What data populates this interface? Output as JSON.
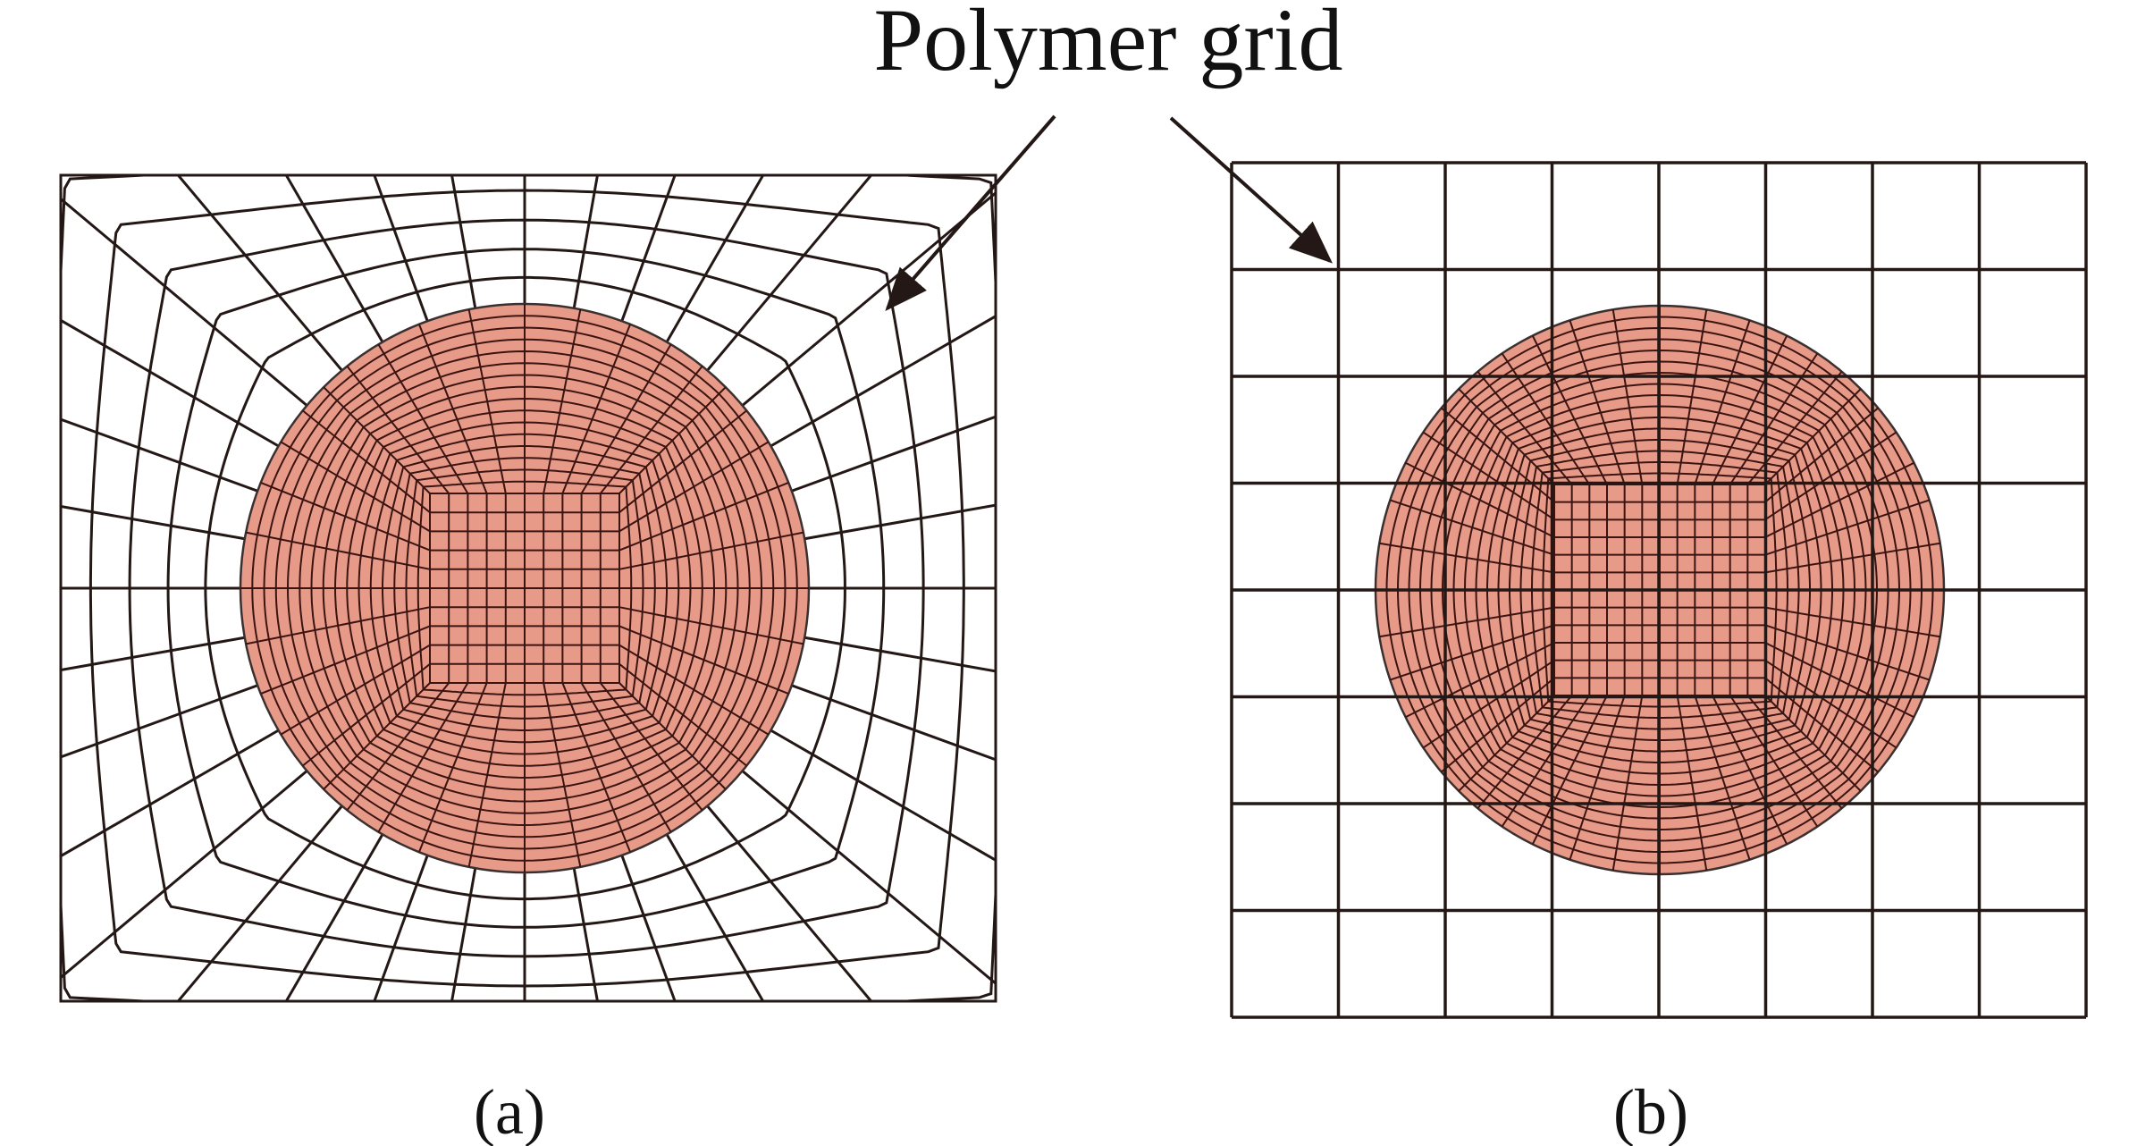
{
  "annotation": {
    "text": "Polymer grid"
  },
  "panels": [
    {
      "id": "a",
      "caption": "(a)"
    },
    {
      "id": "b",
      "caption": "(b)"
    }
  ],
  "colors": {
    "particle_fill": "#e89a88",
    "line": "#231815",
    "fine_mesh_line": "#3b1412",
    "background": "#ffffff"
  }
}
